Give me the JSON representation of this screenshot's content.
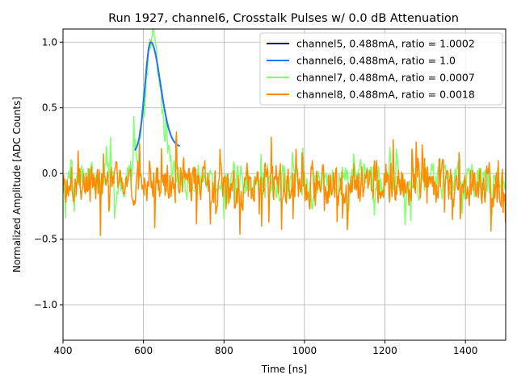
{
  "chart_data": {
    "type": "line",
    "title": "Run 1927, channel6, Crosstalk Pulses w/ 0.0 dB Attenuation",
    "xlabel": "Time [ns]",
    "ylabel": "Normalized Amplitude [ADC Counts]",
    "xlim": [
      400,
      1500
    ],
    "ylim": [
      -1.27,
      1.1
    ],
    "xticks": [
      400,
      600,
      800,
      1000,
      1200,
      1400
    ],
    "xtick_labels": [
      "400",
      "600",
      "800",
      "1000",
      "1200",
      "1400"
    ],
    "yticks": [
      -1.0,
      -0.5,
      0.0,
      0.5,
      1.0
    ],
    "ytick_labels": [
      "−1.0",
      "−0.5",
      "0.0",
      "0.5",
      "1.0"
    ],
    "grid": true,
    "legend_position": "top-right",
    "series": [
      {
        "name": "channel5, 0.488mA, ratio = 1.0002",
        "color": "#00008b",
        "kind": "pulse",
        "pulse": {
          "start": 578,
          "end": 690,
          "peak_x": 618,
          "peak_y": 1.0,
          "start_y": 0.16,
          "end_y": 0.2,
          "rise": 26,
          "fall": 40
        }
      },
      {
        "name": "channel6, 0.488mA, ratio = 1.0",
        "color": "#1f77ff",
        "kind": "pulse",
        "pulse": {
          "start": 578,
          "end": 690,
          "peak_x": 618,
          "peak_y": 1.0,
          "start_y": 0.16,
          "end_y": 0.2,
          "rise": 26,
          "fall": 40
        }
      },
      {
        "name": "channel7, 0.488mA, ratio = 0.0007",
        "color": "#80ff6f",
        "kind": "noise",
        "noise": {
          "seed": 7,
          "step": 2,
          "mean": -0.05,
          "amp": 0.2,
          "spike": 0.45,
          "bump_x": 622,
          "bump_y": 1.0,
          "bump_w": 22
        }
      },
      {
        "name": "channel8, 0.488mA, ratio = 0.0018",
        "color": "#ff8c00",
        "kind": "noise",
        "noise": {
          "seed": 3,
          "step": 1.5,
          "mean": -0.08,
          "amp": 0.24,
          "spike": 0.55,
          "bump_x": 0,
          "bump_y": 0,
          "bump_w": 1
        }
      }
    ]
  }
}
